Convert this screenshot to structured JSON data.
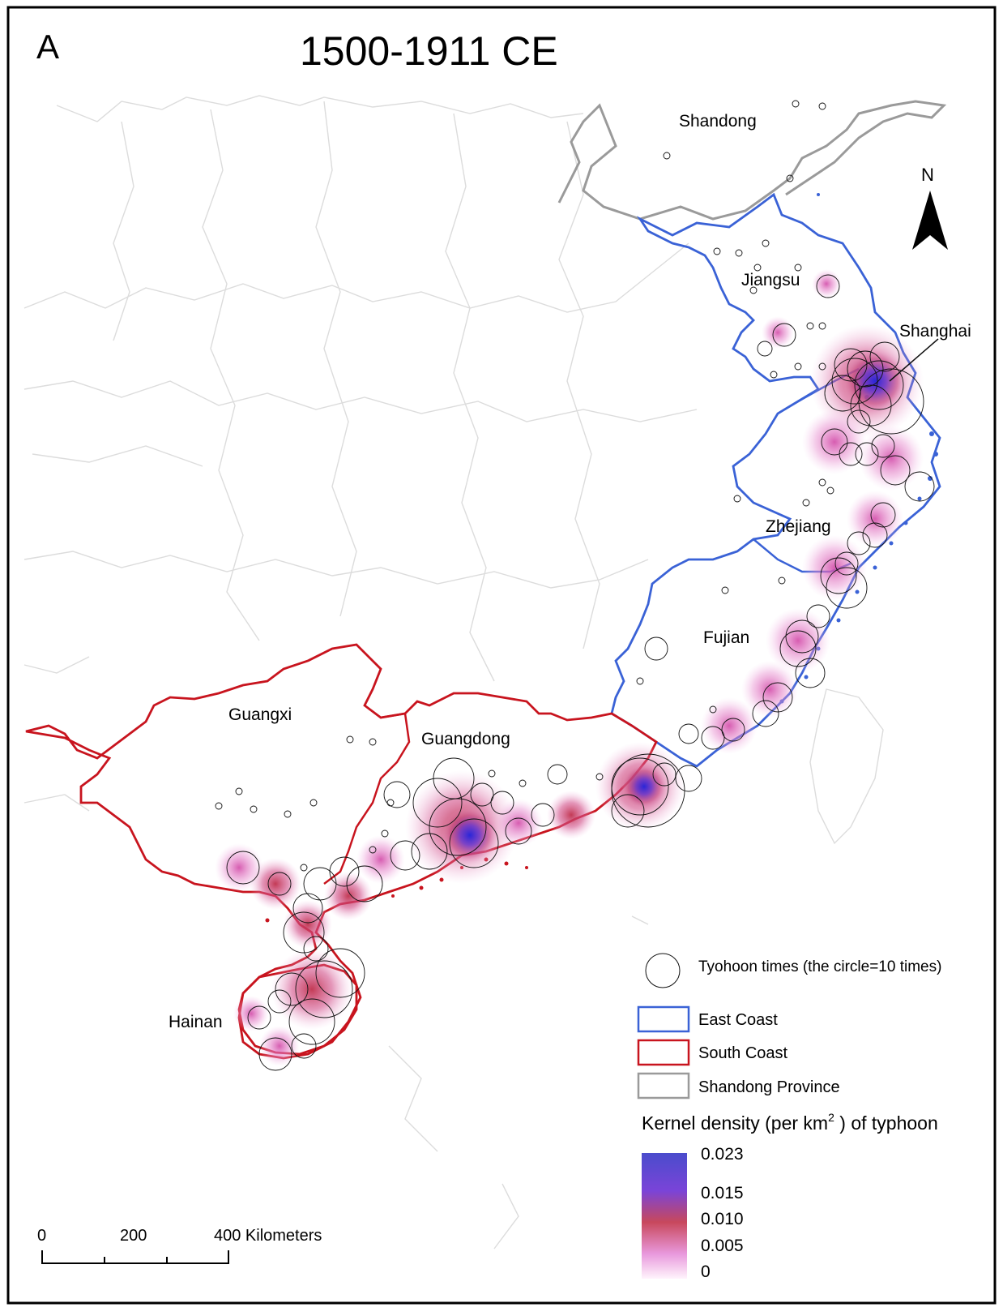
{
  "panel_letter": "A",
  "title": "1500-1911 CE",
  "north_label": "N",
  "province_labels": {
    "shandong": "Shandong",
    "jiangsu": "Jiangsu",
    "shanghai": "Shanghai",
    "zhejiang": "Zhejiang",
    "fujian": "Fujian",
    "guangxi": "Guangxi",
    "guangdong": "Guangdong",
    "hainan": "Hainan"
  },
  "legend": {
    "circle_label": "Tyohoon times (the circle=10 times)",
    "items": [
      {
        "label": "East Coast",
        "color": "#3a62d6"
      },
      {
        "label": "South Coast",
        "color": "#c8141e"
      },
      {
        "label": "Shandong Province",
        "color": "#9a9a9a"
      }
    ],
    "density_title_pre": "Kernel density (per km",
    "density_title_sup": "2",
    "density_title_post": " ) of typhoon",
    "ramp_labels": [
      "0.023",
      "0.015",
      "0.010",
      "0.005",
      "0"
    ]
  },
  "scale_bar": {
    "labels": [
      "0",
      "200",
      "400 Kilometers"
    ]
  },
  "colors": {
    "east_coast": "#3a62d6",
    "south_coast": "#c8141e",
    "shandong": "#9a9a9a",
    "basemap": "#dcdcdc",
    "density_high": "#3b2bd0",
    "density_mid": "#c33a62",
    "density_low": "#e88fd0"
  }
}
